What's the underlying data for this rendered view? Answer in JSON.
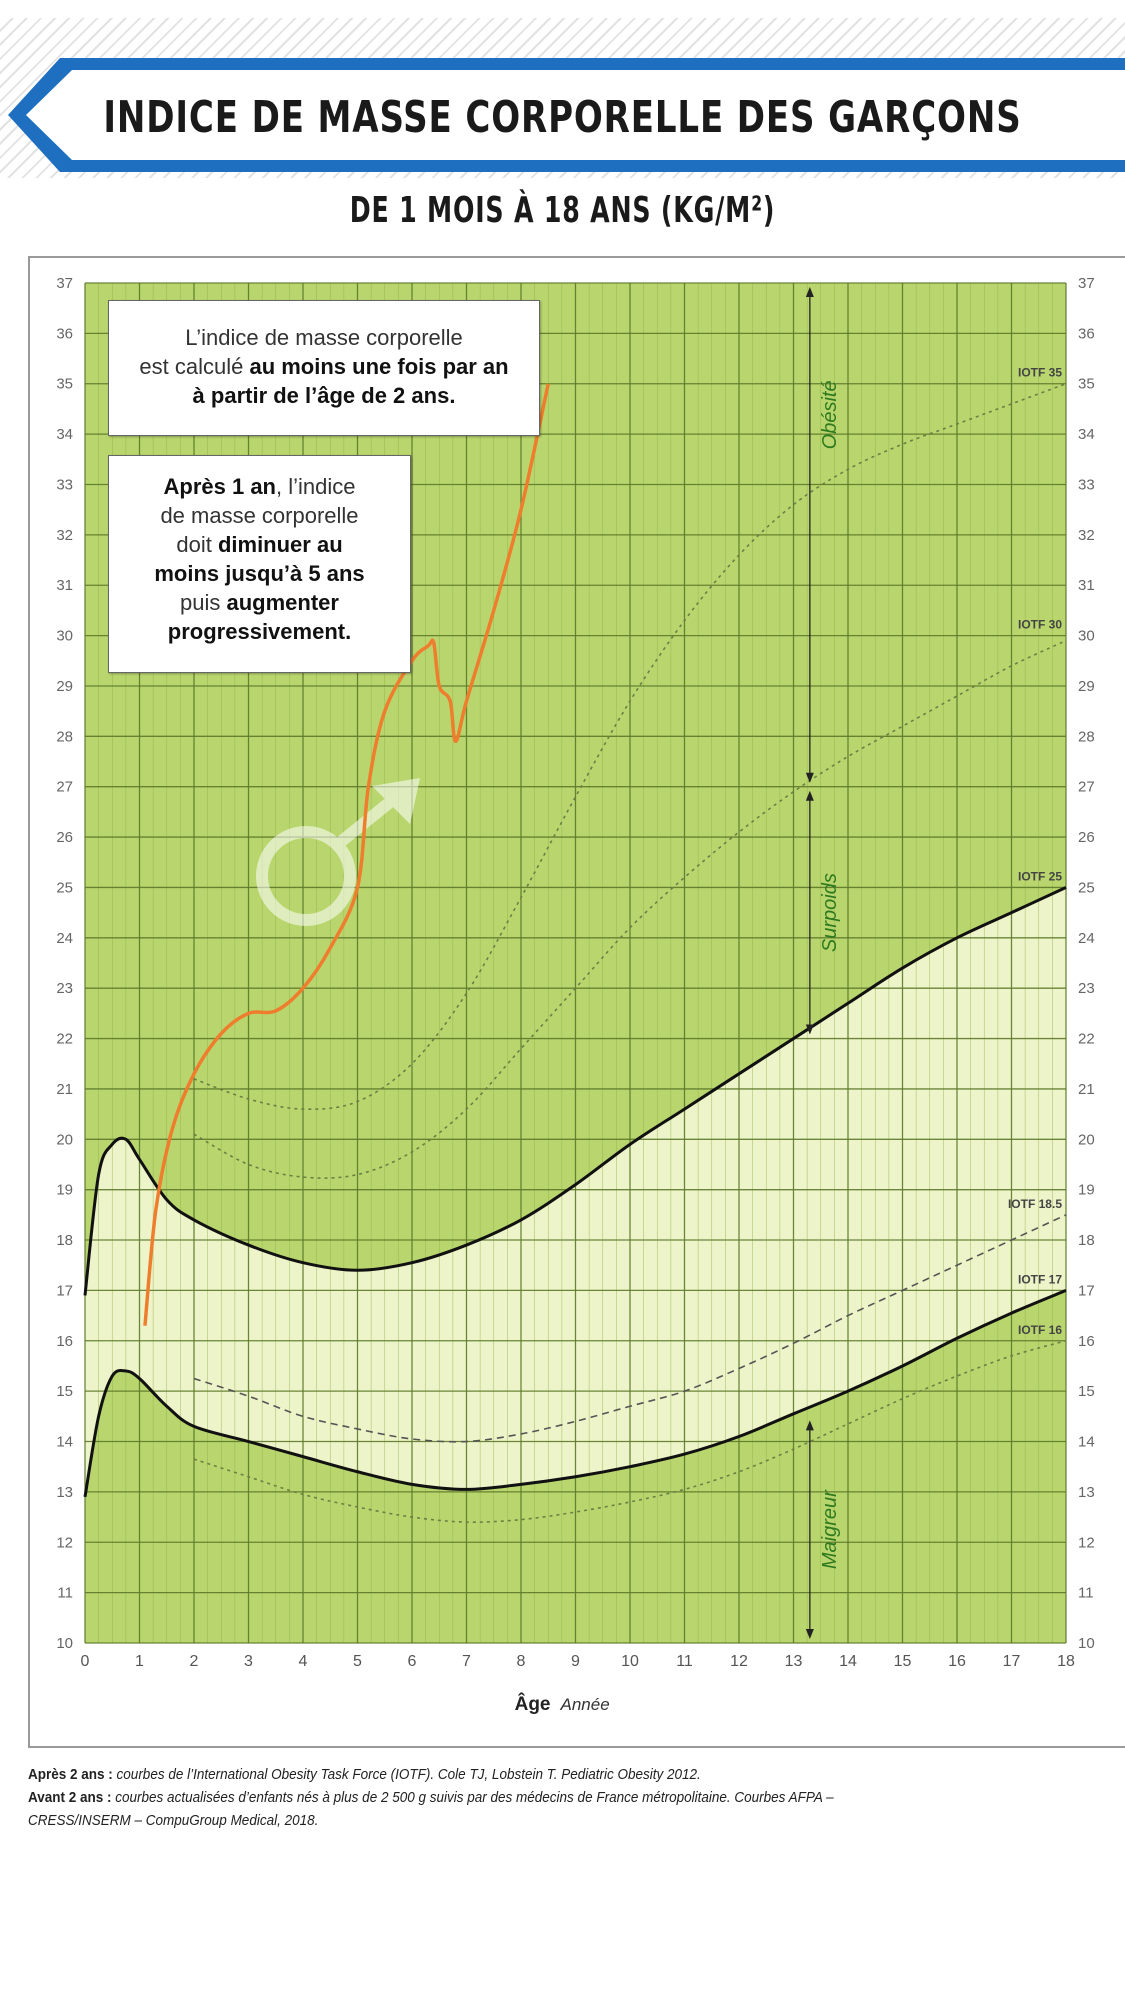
{
  "header": {
    "title": "INDICE DE MASSE CORPORELLE DES GARÇONS",
    "subtitle": "DE 1 MOIS À 18 ANS (KG/M²)"
  },
  "notes": {
    "note1": {
      "l1": "L’indice de masse corporelle",
      "l2a": "est calculé ",
      "l2b": "au moins une fois par an",
      "l3": "à partir de l’âge de 2 ans."
    },
    "note2": {
      "l1a": "Après 1 an",
      "l1b": ", l’indice",
      "l2": "de masse corporelle",
      "l3a": "doit ",
      "l3b": "diminuer au",
      "l4": "moins jusqu’à 5 ans",
      "l5a": "puis ",
      "l5b": "augmenter",
      "l6": "progressivement."
    }
  },
  "footer": {
    "l1_label": "Après 2 ans :",
    "l1_text": " courbes de l’International Obesity Task Force (IOTF). Cole TJ, Lobstein T. Pediatric Obesity 2012.",
    "l2_label": "Avant 2 ans :",
    "l2_text": " courbes actualisées d’enfants nés à plus de 2 500 g suivis par des médecins de France métropolitaine. Courbes AFPA –",
    "l3_text": "CRESS/INSERM – CompuGroup Medical, 2018."
  },
  "colors": {
    "grid_bg": "#b9d66e",
    "band_bg": "#eef4c9",
    "major_line": "#5c7a2a",
    "curve": "#111111",
    "patient": "#ef7d2e",
    "zone_text": "#2f7a1f",
    "banner": "#1e6fc0"
  },
  "icons": {
    "sex_symbol": "male-symbol-icon"
  },
  "chart_data": {
    "type": "line",
    "xlabel": "Âge",
    "xunit": "Année",
    "xlim": [
      0,
      18
    ],
    "ylim": [
      10,
      37
    ],
    "xticks": [
      0,
      1,
      2,
      3,
      4,
      5,
      6,
      7,
      8,
      9,
      10,
      11,
      12,
      13,
      14,
      15,
      16,
      17,
      18
    ],
    "yticks": [
      10,
      11,
      12,
      13,
      14,
      15,
      16,
      17,
      18,
      19,
      20,
      21,
      22,
      23,
      24,
      25,
      26,
      27,
      28,
      29,
      30,
      31,
      32,
      33,
      34,
      35,
      36,
      37
    ],
    "grid": true,
    "series": [
      {
        "name": "IOTF 35",
        "style": "dotted",
        "x": [
          2,
          3,
          4,
          5,
          6,
          7,
          8,
          9,
          10,
          11,
          12,
          13,
          14,
          15,
          16,
          17,
          18
        ],
        "y": [
          21.2,
          20.8,
          20.6,
          20.75,
          21.5,
          22.9,
          24.8,
          26.8,
          28.7,
          30.3,
          31.6,
          32.6,
          33.3,
          33.8,
          34.2,
          34.6,
          35.0
        ]
      },
      {
        "name": "IOTF 30",
        "style": "dotted",
        "x": [
          2,
          3,
          4,
          5,
          6,
          7,
          8,
          9,
          10,
          11,
          12,
          13,
          14,
          15,
          16,
          17,
          18
        ],
        "y": [
          20.1,
          19.5,
          19.25,
          19.3,
          19.75,
          20.6,
          21.8,
          23.0,
          24.2,
          25.2,
          26.1,
          26.9,
          27.6,
          28.2,
          28.8,
          29.4,
          29.9
        ]
      },
      {
        "name": "IOTF 25",
        "style": "solid",
        "x": [
          0,
          0.25,
          0.5,
          0.75,
          1,
          1.5,
          2,
          3,
          4,
          5,
          6,
          7,
          8,
          9,
          10,
          11,
          12,
          13,
          14,
          15,
          16,
          17,
          18
        ],
        "y": [
          16.9,
          19.3,
          19.9,
          20.0,
          19.6,
          18.8,
          18.4,
          17.9,
          17.55,
          17.4,
          17.55,
          17.9,
          18.4,
          19.1,
          19.9,
          20.6,
          21.3,
          22.0,
          22.7,
          23.4,
          24.0,
          24.5,
          25.0
        ]
      },
      {
        "name": "IOTF 18.5",
        "style": "dashed",
        "x": [
          2,
          3,
          4,
          5,
          6,
          7,
          8,
          9,
          10,
          11,
          12,
          13,
          14,
          15,
          16,
          17,
          18
        ],
        "y": [
          15.25,
          14.9,
          14.5,
          14.25,
          14.05,
          14.0,
          14.15,
          14.4,
          14.7,
          15.0,
          15.45,
          15.95,
          16.5,
          17.0,
          17.5,
          18.0,
          18.5
        ]
      },
      {
        "name": "IOTF 17",
        "style": "solid",
        "x": [
          0,
          0.25,
          0.5,
          0.75,
          1,
          1.5,
          2,
          3,
          4,
          5,
          6,
          7,
          8,
          9,
          10,
          11,
          12,
          13,
          14,
          15,
          16,
          17,
          18
        ],
        "y": [
          12.9,
          14.5,
          15.3,
          15.4,
          15.25,
          14.7,
          14.3,
          14.0,
          13.7,
          13.4,
          13.15,
          13.05,
          13.15,
          13.3,
          13.5,
          13.75,
          14.1,
          14.55,
          15.0,
          15.5,
          16.05,
          16.55,
          17.0
        ]
      },
      {
        "name": "IOTF 16",
        "style": "dotted",
        "x": [
          2,
          3,
          4,
          5,
          6,
          7,
          8,
          9,
          10,
          11,
          12,
          13,
          14,
          15,
          16,
          17,
          18
        ],
        "y": [
          13.65,
          13.3,
          12.95,
          12.7,
          12.5,
          12.4,
          12.45,
          12.6,
          12.8,
          13.05,
          13.4,
          13.85,
          14.35,
          14.85,
          15.3,
          15.7,
          16.0
        ]
      },
      {
        "style": "patient",
        "x": [
          1.1,
          1.3,
          1.6,
          2,
          2.5,
          3,
          3.5,
          4,
          4.5,
          5,
          5.2,
          5.5,
          6,
          6.3,
          6.4,
          6.5,
          6.7,
          6.8,
          7,
          7.5,
          8,
          8.5
        ],
        "y": [
          16.3,
          18.6,
          20.2,
          21.3,
          22.1,
          22.5,
          22.55,
          23.0,
          23.8,
          25.0,
          27.0,
          28.5,
          29.5,
          29.8,
          29.85,
          29.0,
          28.7,
          27.9,
          28.7,
          30.5,
          32.5,
          35.0
        ]
      }
    ],
    "zones": [
      {
        "label": "Obésité",
        "from": 27,
        "to": 37,
        "x": 13.3
      },
      {
        "label": "Surpoids",
        "from": 22,
        "to": 27,
        "x": 13.3
      },
      {
        "label": "Maigreur",
        "from": 10,
        "to": 14.5,
        "x": 13.3
      }
    ]
  }
}
